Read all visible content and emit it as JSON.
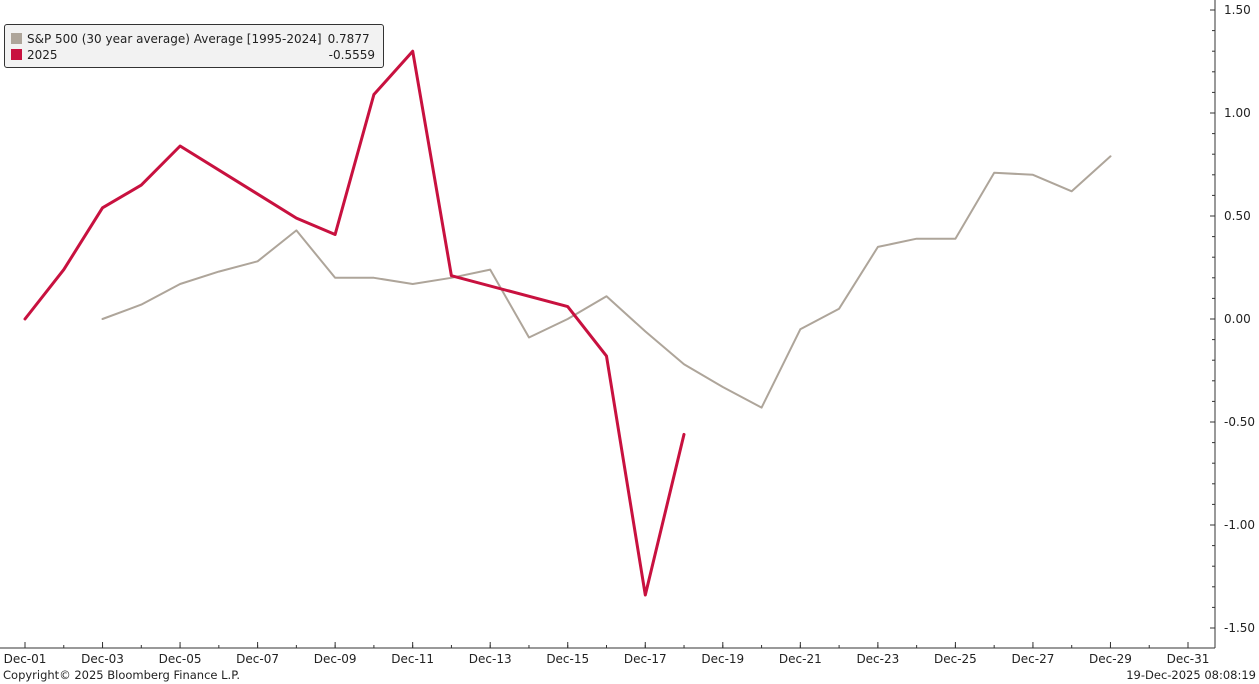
{
  "chart_data": {
    "type": "line",
    "x_ticks": [
      "Dec-01",
      "Dec-03",
      "Dec-05",
      "Dec-07",
      "Dec-09",
      "Dec-11",
      "Dec-13",
      "Dec-15",
      "Dec-17",
      "Dec-19",
      "Dec-21",
      "Dec-23",
      "Dec-25",
      "Dec-27",
      "Dec-29",
      "Dec-31"
    ],
    "y_ticks": [
      "1.50",
      "1.00",
      "0.50",
      "0.00",
      "-0.50",
      "-1.00",
      "-1.50"
    ],
    "ylim": [
      -1.5,
      1.5
    ],
    "xlim": [
      1,
      31
    ],
    "grid": false,
    "legend_position": "top-left",
    "series": [
      {
        "name": "S&P 500 (30 year average) Average [1995-2024]",
        "legend_value": "0.7877",
        "color": "#aea59a",
        "x": [
          3,
          4,
          5,
          6,
          7,
          8,
          9,
          10,
          11,
          12,
          13,
          14,
          15,
          16,
          17,
          18,
          19,
          20,
          21,
          22,
          23,
          24,
          25,
          26,
          27,
          28,
          29
        ],
        "values": [
          0.0,
          0.07,
          0.17,
          0.23,
          0.28,
          0.43,
          0.2,
          0.2,
          0.17,
          0.2,
          0.24,
          -0.09,
          0.0,
          0.11,
          -0.06,
          -0.22,
          -0.33,
          -0.43,
          -0.05,
          0.05,
          0.35,
          0.39,
          0.39,
          0.71,
          0.7,
          0.62,
          0.79
        ]
      },
      {
        "name": "2025",
        "legend_value": "-0.5559",
        "color": "#c8113f",
        "x": [
          1,
          2,
          3,
          4,
          5,
          8,
          9,
          10,
          11,
          12,
          15,
          16,
          17,
          18
        ],
        "values": [
          0.0,
          0.24,
          0.54,
          0.65,
          0.84,
          0.49,
          0.41,
          1.09,
          1.3,
          0.21,
          0.06,
          -0.18,
          -1.34,
          -0.56
        ]
      }
    ]
  },
  "footer": {
    "copyright": "Copyright© 2025 Bloomberg Finance L.P.",
    "timestamp": "19-Dec-2025 08:08:19"
  }
}
